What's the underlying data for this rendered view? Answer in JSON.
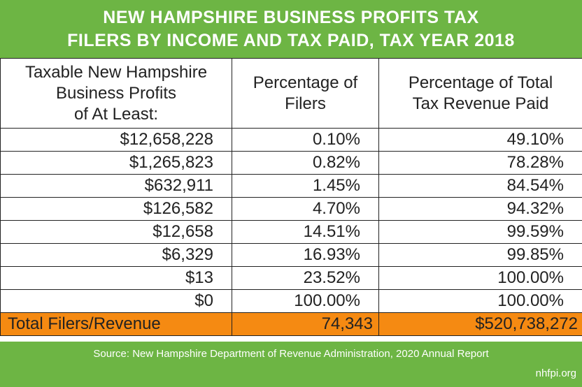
{
  "title": {
    "line1": "NEW HAMPSHIRE BUSINESS PROFITS TAX",
    "line2": "FILERS BY INCOME AND TAX PAID, TAX YEAR 2018"
  },
  "headers": {
    "col1": [
      "Taxable New Hampshire",
      "Business Profits",
      "of At Least:"
    ],
    "col2": [
      "Percentage of",
      "Filers"
    ],
    "col3": [
      "Percentage of Total",
      "Tax Revenue Paid"
    ]
  },
  "rows": [
    {
      "threshold": "$12,658,228",
      "filers": "0.10%",
      "revenue": "49.10%"
    },
    {
      "threshold": "$1,265,823",
      "filers": "0.82%",
      "revenue": "78.28%"
    },
    {
      "threshold": "$632,911",
      "filers": "1.45%",
      "revenue": "84.54%"
    },
    {
      "threshold": "$126,582",
      "filers": "4.70%",
      "revenue": "94.32%"
    },
    {
      "threshold": "$12,658",
      "filers": "14.51%",
      "revenue": "99.59%"
    },
    {
      "threshold": "$6,329",
      "filers": "16.93%",
      "revenue": "99.85%"
    },
    {
      "threshold": "$13",
      "filers": "23.52%",
      "revenue": "100.00%"
    },
    {
      "threshold": "$0",
      "filers": "100.00%",
      "revenue": "100.00%"
    }
  ],
  "total": {
    "label": "Total Filers/Revenue",
    "filers": "74,343",
    "revenue": "$520,738,272"
  },
  "footer": {
    "source": "Source: New Hampshire Department of Revenue Administration, 2020 Annual Report",
    "site": "nhfpi.org"
  },
  "colors": {
    "title_bg": "#6db544",
    "total_bg": "#f58a12",
    "border": "#222222"
  },
  "chart_data": {
    "type": "table",
    "title": "NEW HAMPSHIRE BUSINESS PROFITS TAX FILERS BY INCOME AND TAX PAID, TAX YEAR 2018",
    "columns": [
      "Taxable New Hampshire Business Profits of At Least:",
      "Percentage of Filers",
      "Percentage of Total Tax Revenue Paid"
    ],
    "values": [
      [
        12658228,
        0.1,
        49.1
      ],
      [
        1265823,
        0.82,
        78.28
      ],
      [
        632911,
        1.45,
        84.54
      ],
      [
        126582,
        4.7,
        94.32
      ],
      [
        12658,
        14.51,
        99.59
      ],
      [
        6329,
        16.93,
        99.85
      ],
      [
        13,
        23.52,
        100.0
      ],
      [
        0,
        100.0,
        100.0
      ]
    ],
    "total": {
      "filers": 74343,
      "revenue": 520738272
    }
  }
}
